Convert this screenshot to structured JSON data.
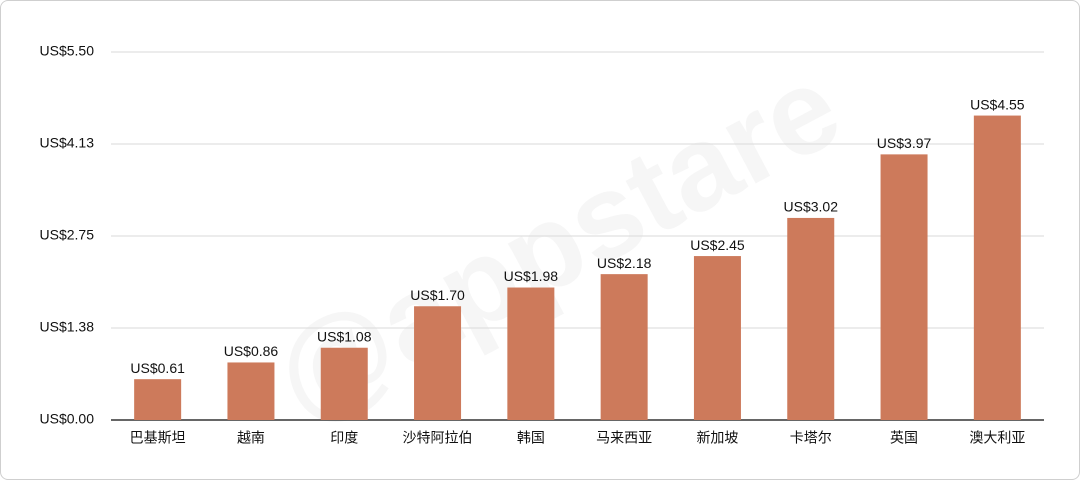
{
  "chart_data": {
    "type": "bar",
    "watermark": "@appstare",
    "categories": [
      "巴基斯坦",
      "越南",
      "印度",
      "沙特阿拉伯",
      "韩国",
      "马来西亚",
      "新加坡",
      "卡塔尔",
      "英国",
      "澳大利亚"
    ],
    "values": [
      0.61,
      0.86,
      1.08,
      1.7,
      1.98,
      2.18,
      2.45,
      3.02,
      3.97,
      4.55
    ],
    "value_labels": [
      "US$0.61",
      "US$0.86",
      "US$1.08",
      "US$1.70",
      "US$1.98",
      "US$2.18",
      "US$2.45",
      "US$3.02",
      "US$3.97",
      "US$4.55"
    ],
    "color": "#cd7a5b",
    "ylim": [
      0,
      5.5
    ],
    "yticks": [
      {
        "value": 0,
        "label": "US$0.00"
      },
      {
        "value": 1.375,
        "label": "US$1.38"
      },
      {
        "value": 2.75,
        "label": "US$2.75"
      },
      {
        "value": 4.125,
        "label": "US$4.13"
      },
      {
        "value": 5.5,
        "label": "US$5.50"
      }
    ],
    "grid": true
  }
}
